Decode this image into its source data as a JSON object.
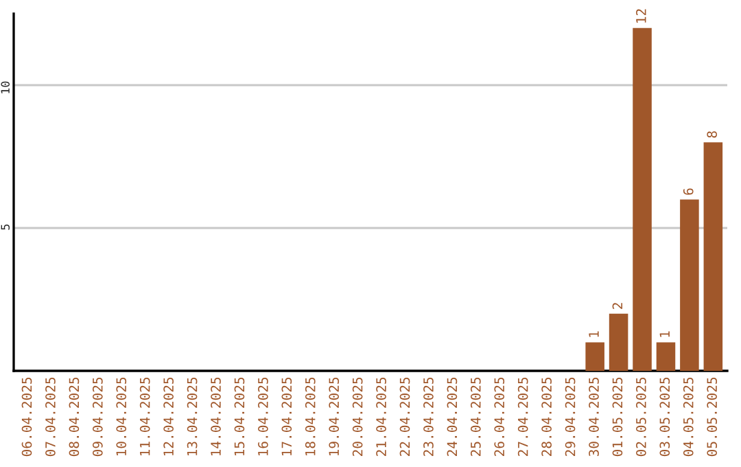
{
  "chart_data": {
    "type": "bar",
    "categories": [
      "06.04.2025",
      "07.04.2025",
      "08.04.2025",
      "09.04.2025",
      "10.04.2025",
      "11.04.2025",
      "12.04.2025",
      "13.04.2025",
      "14.04.2025",
      "15.04.2025",
      "16.04.2025",
      "17.04.2025",
      "18.04.2025",
      "19.04.2025",
      "20.04.2025",
      "21.04.2025",
      "22.04.2025",
      "23.04.2025",
      "24.04.2025",
      "25.04.2025",
      "26.04.2025",
      "27.04.2025",
      "28.04.2025",
      "29.04.2025",
      "30.04.2025",
      "01.05.2025",
      "02.05.2025",
      "03.05.2025",
      "04.05.2025",
      "05.05.2025"
    ],
    "values": [
      0,
      0,
      0,
      0,
      0,
      0,
      0,
      0,
      0,
      0,
      0,
      0,
      0,
      0,
      0,
      0,
      0,
      0,
      0,
      0,
      0,
      0,
      0,
      0,
      1,
      2,
      12,
      1,
      6,
      8
    ],
    "value_labels": [
      null,
      null,
      null,
      null,
      null,
      null,
      null,
      null,
      null,
      null,
      null,
      null,
      null,
      null,
      null,
      null,
      null,
      null,
      null,
      null,
      null,
      null,
      null,
      null,
      "1",
      "2",
      "12",
      "1",
      "6",
      "8"
    ],
    "color": "#a0572a",
    "ylim": [
      0,
      12.5
    ],
    "yticks": [
      5,
      10
    ],
    "grid": "y"
  }
}
